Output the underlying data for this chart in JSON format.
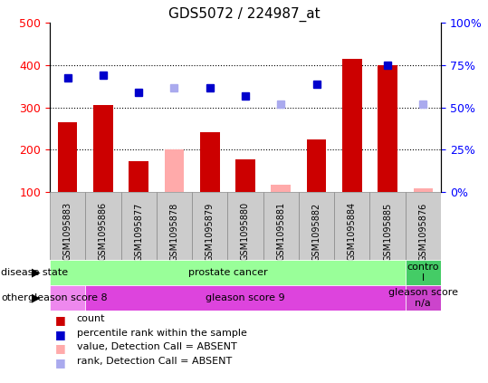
{
  "title": "GDS5072 / 224987_at",
  "samples": [
    "GSM1095883",
    "GSM1095886",
    "GSM1095877",
    "GSM1095878",
    "GSM1095879",
    "GSM1095880",
    "GSM1095881",
    "GSM1095882",
    "GSM1095884",
    "GSM1095885",
    "GSM1095876"
  ],
  "bar_values": [
    265,
    305,
    172,
    200,
    242,
    176,
    118,
    225,
    415,
    400,
    108
  ],
  "bar_absent": [
    false,
    false,
    false,
    true,
    false,
    false,
    true,
    false,
    false,
    false,
    true
  ],
  "rank_values": [
    370,
    375,
    335,
    347,
    347,
    327,
    308,
    355,
    null,
    400,
    308
  ],
  "rank_absent": [
    false,
    false,
    false,
    true,
    false,
    false,
    true,
    false,
    false,
    false,
    true
  ],
  "bar_color_normal": "#cc0000",
  "bar_color_absent": "#ffaaaa",
  "rank_color_normal": "#0000cc",
  "rank_color_absent": "#aaaaee",
  "ylim_left": [
    100,
    500
  ],
  "ylim_right": [
    0,
    100
  ],
  "yticks_left": [
    100,
    200,
    300,
    400,
    500
  ],
  "yticks_right": [
    0,
    25,
    50,
    75,
    100
  ],
  "yticklabels_right": [
    "0%",
    "25%",
    "50%",
    "75%",
    "100%"
  ],
  "hlines": [
    200,
    300,
    400
  ],
  "plot_bg": "#ffffff",
  "fig_bg": "#ffffff",
  "disease_state_label": "disease state",
  "disease_state_segments": [
    {
      "label": "prostate cancer",
      "color": "#99ff99",
      "start": 0,
      "end": 10
    },
    {
      "label": "contro\nl",
      "color": "#44cc66",
      "start": 10,
      "end": 11
    }
  ],
  "gleason_label": "other",
  "gleason_segments": [
    {
      "label": "gleason score 8",
      "color": "#ee88ee",
      "start": 0,
      "end": 1
    },
    {
      "label": "gleason score 9",
      "color": "#dd44dd",
      "start": 1,
      "end": 10
    },
    {
      "label": "gleason score\nn/a",
      "color": "#cc44cc",
      "start": 10,
      "end": 11
    }
  ],
  "legend_items": [
    {
      "label": "count",
      "color": "#cc0000"
    },
    {
      "label": "percentile rank within the sample",
      "color": "#0000cc"
    },
    {
      "label": "value, Detection Call = ABSENT",
      "color": "#ffaaaa"
    },
    {
      "label": "rank, Detection Call = ABSENT",
      "color": "#aaaaee"
    }
  ],
  "sample_box_color": "#cccccc",
  "sample_box_edge": "#888888"
}
